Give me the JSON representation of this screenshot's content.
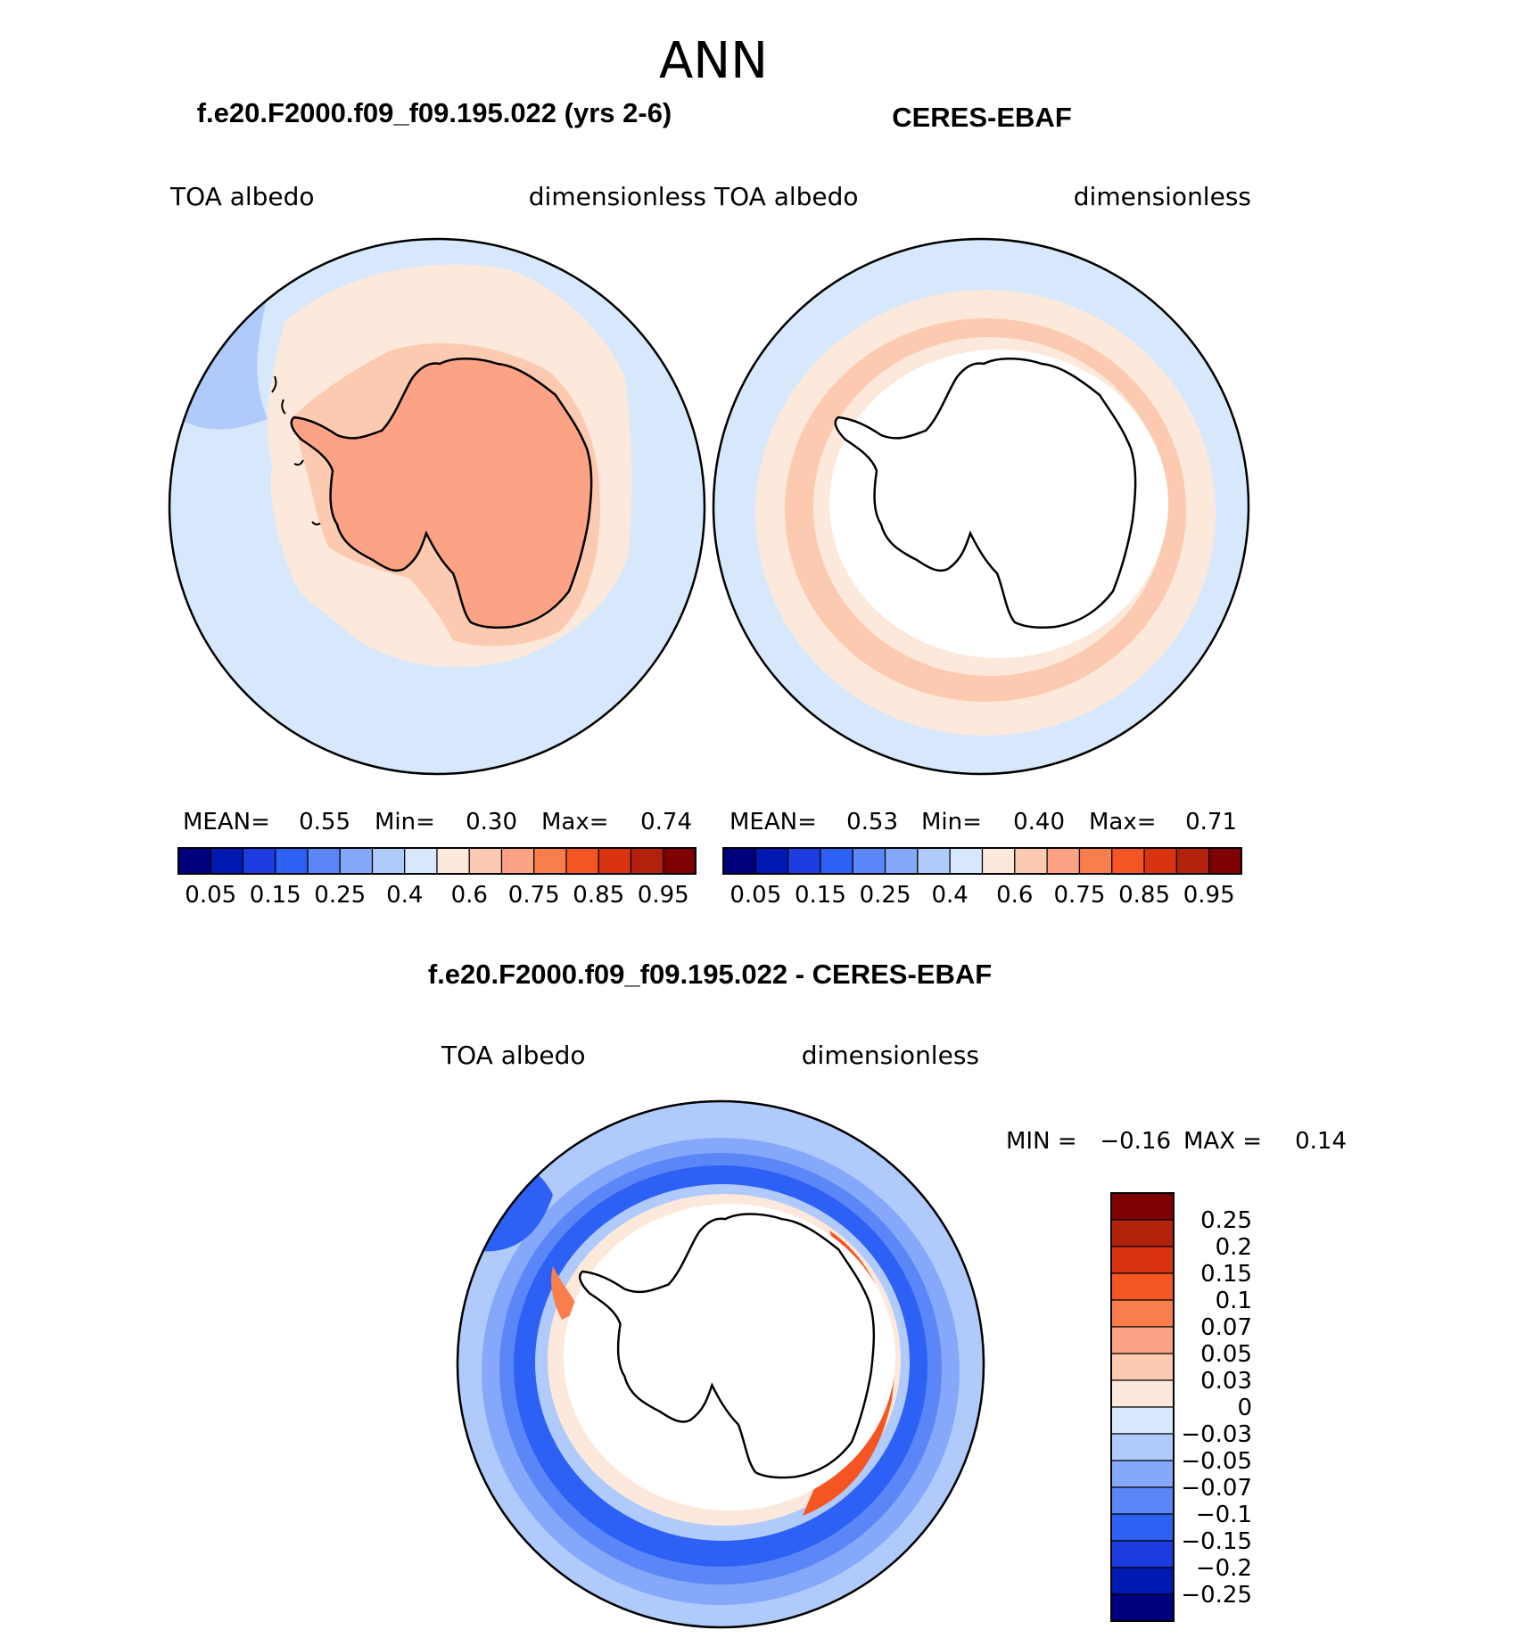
{
  "figure_title": "ANN",
  "panels": {
    "model": {
      "title": "f.e20.F2000.f09_f09.195.022 (yrs 2-6)",
      "left_label": "TOA albedo",
      "right_label": "dimensionless",
      "stats": {
        "mean_label": "MEAN=",
        "mean_value": "0.55",
        "min_label": "Min=",
        "min_value": "0.30",
        "max_label": "Max=",
        "max_value": "0.74"
      }
    },
    "obs": {
      "title": "CERES-EBAF",
      "left_label": "TOA albedo",
      "right_label": "dimensionless",
      "stats": {
        "mean_label": "MEAN=",
        "mean_value": "0.53",
        "min_label": "Min=",
        "min_value": "0.40",
        "max_label": "Max=",
        "max_value": "0.71"
      }
    },
    "diff": {
      "title": "f.e20.F2000.f09_f09.195.022 - CERES-EBAF",
      "left_label": "TOA albedo",
      "right_label": "dimensionless",
      "stats": {
        "min_label": "MIN =",
        "min_value": "−0.16",
        "max_label": "MAX =",
        "max_value": "0.14"
      }
    }
  },
  "chart_data": [
    {
      "type": "heatmap",
      "name": "model",
      "projection": "south-polar-stereographic",
      "title": "f.e20.F2000.f09_f09.195.022 (yrs 2-6)",
      "variable": "TOA albedo",
      "units": "dimensionless",
      "mean": 0.55,
      "min": 0.3,
      "max": 0.74,
      "colorbar": {
        "orientation": "horizontal",
        "tick_labels": [
          "0.05",
          "0.15",
          "0.25",
          "0.4",
          "0.6",
          "0.75",
          "0.85",
          "0.95"
        ],
        "colors": [
          "#00007f",
          "#0019b0",
          "#1c3ce0",
          "#2d60f4",
          "#5a86f8",
          "#86a8fa",
          "#b1cafc",
          "#d7e8fc",
          "#fde9dc",
          "#fccab0",
          "#fba384",
          "#fa7e4c",
          "#f55523",
          "#da3310",
          "#b2210b",
          "#7f0000"
        ]
      },
      "regions": [
        {
          "area": "open ocean",
          "value_range": [
            0.4,
            0.5
          ]
        },
        {
          "area": "sea-ice zone",
          "value_range": [
            0.5,
            0.6
          ]
        },
        {
          "area": "continent",
          "value_range": [
            0.6,
            0.7
          ]
        }
      ]
    },
    {
      "type": "heatmap",
      "name": "obs",
      "projection": "south-polar-stereographic",
      "title": "CERES-EBAF",
      "variable": "TOA albedo",
      "units": "dimensionless",
      "mean": 0.53,
      "min": 0.4,
      "max": 0.71,
      "colorbar": {
        "orientation": "horizontal",
        "tick_labels": [
          "0.05",
          "0.15",
          "0.25",
          "0.4",
          "0.6",
          "0.75",
          "0.85",
          "0.95"
        ],
        "colors": [
          "#00007f",
          "#0019b0",
          "#1c3ce0",
          "#2d60f4",
          "#5a86f8",
          "#86a8fa",
          "#b1cafc",
          "#d7e8fc",
          "#fde9dc",
          "#fccab0",
          "#fba384",
          "#fa7e4c",
          "#f55523",
          "#da3310",
          "#b2210b",
          "#7f0000"
        ]
      },
      "regions": [
        {
          "area": "open ocean",
          "value_range": [
            0.4,
            0.5
          ]
        },
        {
          "area": "sea-ice ring",
          "value_range": [
            0.5,
            0.7
          ]
        },
        {
          "area": "continent",
          "value_range": null
        }
      ]
    },
    {
      "type": "heatmap",
      "name": "difference",
      "projection": "south-polar-stereographic",
      "title": "f.e20.F2000.f09_f09.195.022 - CERES-EBAF",
      "variable": "TOA albedo",
      "units": "dimensionless",
      "min": -0.16,
      "max": 0.14,
      "colorbar": {
        "orientation": "vertical",
        "tick_labels": [
          "0.25",
          "0.2",
          "0.15",
          "0.1",
          "0.07",
          "0.05",
          "0.03",
          "0",
          "−0.03",
          "−0.05",
          "−0.07",
          "−0.1",
          "−0.15",
          "−0.2",
          "−0.25"
        ],
        "colors": [
          "#7f0000",
          "#b2210b",
          "#da3310",
          "#f55523",
          "#fa7e4c",
          "#fba384",
          "#fccab0",
          "#fde9dc",
          "#d7e8fc",
          "#b1cafc",
          "#86a8fa",
          "#5a86f8",
          "#2d60f4",
          "#1c3ce0",
          "#0019b0",
          "#00007f"
        ]
      },
      "regions": [
        {
          "area": "outer ocean",
          "value_range": [
            -0.05,
            -0.03
          ]
        },
        {
          "area": "southern ocean ring",
          "value_range": [
            -0.15,
            -0.07
          ]
        },
        {
          "area": "east antarctic coast",
          "value_range": [
            0.05,
            0.15
          ]
        },
        {
          "area": "continent",
          "value_range": null
        }
      ]
    }
  ],
  "colors": {
    "ocean_light": "#d7e8fc",
    "land_model": "#fba384",
    "ice_band": "#fde9dc",
    "ring_obs": "#fccab0",
    "diff_dark": "#2d60f4"
  }
}
